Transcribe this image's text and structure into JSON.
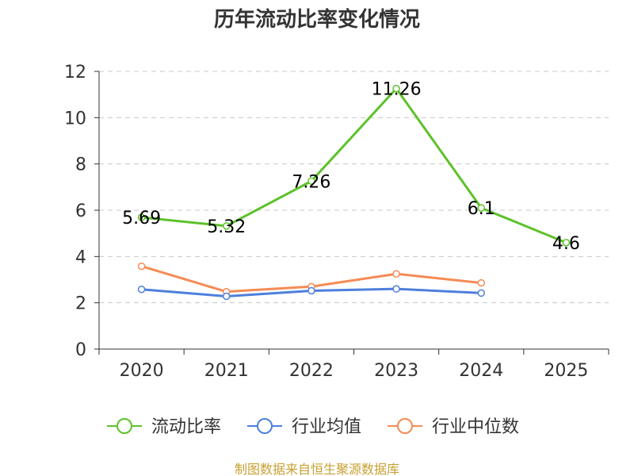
{
  "chart_data": {
    "type": "line",
    "title": "历年流动比率变化情况",
    "categories": [
      "2020",
      "2021",
      "2022",
      "2023",
      "2024",
      "2025"
    ],
    "y_ticks": [
      "0",
      "2",
      "4",
      "6",
      "8",
      "10",
      "12"
    ],
    "ylim": [
      0,
      12
    ],
    "xlabel": "",
    "ylabel": "",
    "grid": "horizontal dashed",
    "legend_position": "bottom",
    "series": [
      {
        "name": "流动比率",
        "color": "#5cc22a",
        "values": [
          5.69,
          5.32,
          7.26,
          11.26,
          6.1,
          4.6
        ],
        "labels": [
          "5.69",
          "5.32",
          "7.26",
          "11.26",
          "6.1",
          "4.6"
        ]
      },
      {
        "name": "行业均值",
        "color": "#4e7fdc",
        "values": [
          2.58,
          2.28,
          2.52,
          2.6,
          2.42,
          null
        ]
      },
      {
        "name": "行业中位数",
        "color": "#f58b55",
        "values": [
          3.58,
          2.48,
          2.7,
          3.25,
          2.86,
          null
        ]
      }
    ],
    "source": "制图数据来自恒生聚源数据库"
  }
}
